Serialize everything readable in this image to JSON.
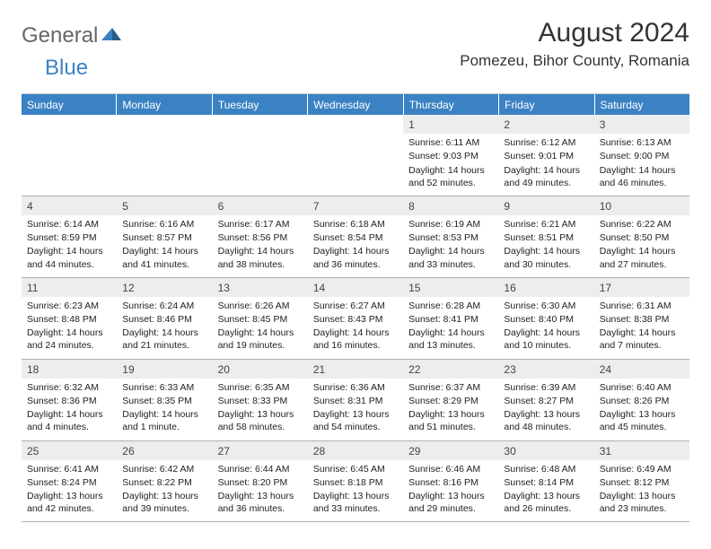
{
  "logo": {
    "part1": "General",
    "part2": "Blue"
  },
  "title": "August 2024",
  "location": "Pomezeu, Bihor County, Romania",
  "colors": {
    "header_bg": "#3b82c4",
    "header_text": "#ffffff",
    "daynum_bg": "#eceded",
    "border": "#b0b0b0",
    "text": "#222222"
  },
  "weekdays": [
    "Sunday",
    "Monday",
    "Tuesday",
    "Wednesday",
    "Thursday",
    "Friday",
    "Saturday"
  ],
  "weeks": [
    [
      {
        "n": "",
        "sr": "",
        "ss": "",
        "dl": ""
      },
      {
        "n": "",
        "sr": "",
        "ss": "",
        "dl": ""
      },
      {
        "n": "",
        "sr": "",
        "ss": "",
        "dl": ""
      },
      {
        "n": "",
        "sr": "",
        "ss": "",
        "dl": ""
      },
      {
        "n": "1",
        "sr": "Sunrise: 6:11 AM",
        "ss": "Sunset: 9:03 PM",
        "dl": "Daylight: 14 hours and 52 minutes."
      },
      {
        "n": "2",
        "sr": "Sunrise: 6:12 AM",
        "ss": "Sunset: 9:01 PM",
        "dl": "Daylight: 14 hours and 49 minutes."
      },
      {
        "n": "3",
        "sr": "Sunrise: 6:13 AM",
        "ss": "Sunset: 9:00 PM",
        "dl": "Daylight: 14 hours and 46 minutes."
      }
    ],
    [
      {
        "n": "4",
        "sr": "Sunrise: 6:14 AM",
        "ss": "Sunset: 8:59 PM",
        "dl": "Daylight: 14 hours and 44 minutes."
      },
      {
        "n": "5",
        "sr": "Sunrise: 6:16 AM",
        "ss": "Sunset: 8:57 PM",
        "dl": "Daylight: 14 hours and 41 minutes."
      },
      {
        "n": "6",
        "sr": "Sunrise: 6:17 AM",
        "ss": "Sunset: 8:56 PM",
        "dl": "Daylight: 14 hours and 38 minutes."
      },
      {
        "n": "7",
        "sr": "Sunrise: 6:18 AM",
        "ss": "Sunset: 8:54 PM",
        "dl": "Daylight: 14 hours and 36 minutes."
      },
      {
        "n": "8",
        "sr": "Sunrise: 6:19 AM",
        "ss": "Sunset: 8:53 PM",
        "dl": "Daylight: 14 hours and 33 minutes."
      },
      {
        "n": "9",
        "sr": "Sunrise: 6:21 AM",
        "ss": "Sunset: 8:51 PM",
        "dl": "Daylight: 14 hours and 30 minutes."
      },
      {
        "n": "10",
        "sr": "Sunrise: 6:22 AM",
        "ss": "Sunset: 8:50 PM",
        "dl": "Daylight: 14 hours and 27 minutes."
      }
    ],
    [
      {
        "n": "11",
        "sr": "Sunrise: 6:23 AM",
        "ss": "Sunset: 8:48 PM",
        "dl": "Daylight: 14 hours and 24 minutes."
      },
      {
        "n": "12",
        "sr": "Sunrise: 6:24 AM",
        "ss": "Sunset: 8:46 PM",
        "dl": "Daylight: 14 hours and 21 minutes."
      },
      {
        "n": "13",
        "sr": "Sunrise: 6:26 AM",
        "ss": "Sunset: 8:45 PM",
        "dl": "Daylight: 14 hours and 19 minutes."
      },
      {
        "n": "14",
        "sr": "Sunrise: 6:27 AM",
        "ss": "Sunset: 8:43 PM",
        "dl": "Daylight: 14 hours and 16 minutes."
      },
      {
        "n": "15",
        "sr": "Sunrise: 6:28 AM",
        "ss": "Sunset: 8:41 PM",
        "dl": "Daylight: 14 hours and 13 minutes."
      },
      {
        "n": "16",
        "sr": "Sunrise: 6:30 AM",
        "ss": "Sunset: 8:40 PM",
        "dl": "Daylight: 14 hours and 10 minutes."
      },
      {
        "n": "17",
        "sr": "Sunrise: 6:31 AM",
        "ss": "Sunset: 8:38 PM",
        "dl": "Daylight: 14 hours and 7 minutes."
      }
    ],
    [
      {
        "n": "18",
        "sr": "Sunrise: 6:32 AM",
        "ss": "Sunset: 8:36 PM",
        "dl": "Daylight: 14 hours and 4 minutes."
      },
      {
        "n": "19",
        "sr": "Sunrise: 6:33 AM",
        "ss": "Sunset: 8:35 PM",
        "dl": "Daylight: 14 hours and 1 minute."
      },
      {
        "n": "20",
        "sr": "Sunrise: 6:35 AM",
        "ss": "Sunset: 8:33 PM",
        "dl": "Daylight: 13 hours and 58 minutes."
      },
      {
        "n": "21",
        "sr": "Sunrise: 6:36 AM",
        "ss": "Sunset: 8:31 PM",
        "dl": "Daylight: 13 hours and 54 minutes."
      },
      {
        "n": "22",
        "sr": "Sunrise: 6:37 AM",
        "ss": "Sunset: 8:29 PM",
        "dl": "Daylight: 13 hours and 51 minutes."
      },
      {
        "n": "23",
        "sr": "Sunrise: 6:39 AM",
        "ss": "Sunset: 8:27 PM",
        "dl": "Daylight: 13 hours and 48 minutes."
      },
      {
        "n": "24",
        "sr": "Sunrise: 6:40 AM",
        "ss": "Sunset: 8:26 PM",
        "dl": "Daylight: 13 hours and 45 minutes."
      }
    ],
    [
      {
        "n": "25",
        "sr": "Sunrise: 6:41 AM",
        "ss": "Sunset: 8:24 PM",
        "dl": "Daylight: 13 hours and 42 minutes."
      },
      {
        "n": "26",
        "sr": "Sunrise: 6:42 AM",
        "ss": "Sunset: 8:22 PM",
        "dl": "Daylight: 13 hours and 39 minutes."
      },
      {
        "n": "27",
        "sr": "Sunrise: 6:44 AM",
        "ss": "Sunset: 8:20 PM",
        "dl": "Daylight: 13 hours and 36 minutes."
      },
      {
        "n": "28",
        "sr": "Sunrise: 6:45 AM",
        "ss": "Sunset: 8:18 PM",
        "dl": "Daylight: 13 hours and 33 minutes."
      },
      {
        "n": "29",
        "sr": "Sunrise: 6:46 AM",
        "ss": "Sunset: 8:16 PM",
        "dl": "Daylight: 13 hours and 29 minutes."
      },
      {
        "n": "30",
        "sr": "Sunrise: 6:48 AM",
        "ss": "Sunset: 8:14 PM",
        "dl": "Daylight: 13 hours and 26 minutes."
      },
      {
        "n": "31",
        "sr": "Sunrise: 6:49 AM",
        "ss": "Sunset: 8:12 PM",
        "dl": "Daylight: 13 hours and 23 minutes."
      }
    ]
  ]
}
